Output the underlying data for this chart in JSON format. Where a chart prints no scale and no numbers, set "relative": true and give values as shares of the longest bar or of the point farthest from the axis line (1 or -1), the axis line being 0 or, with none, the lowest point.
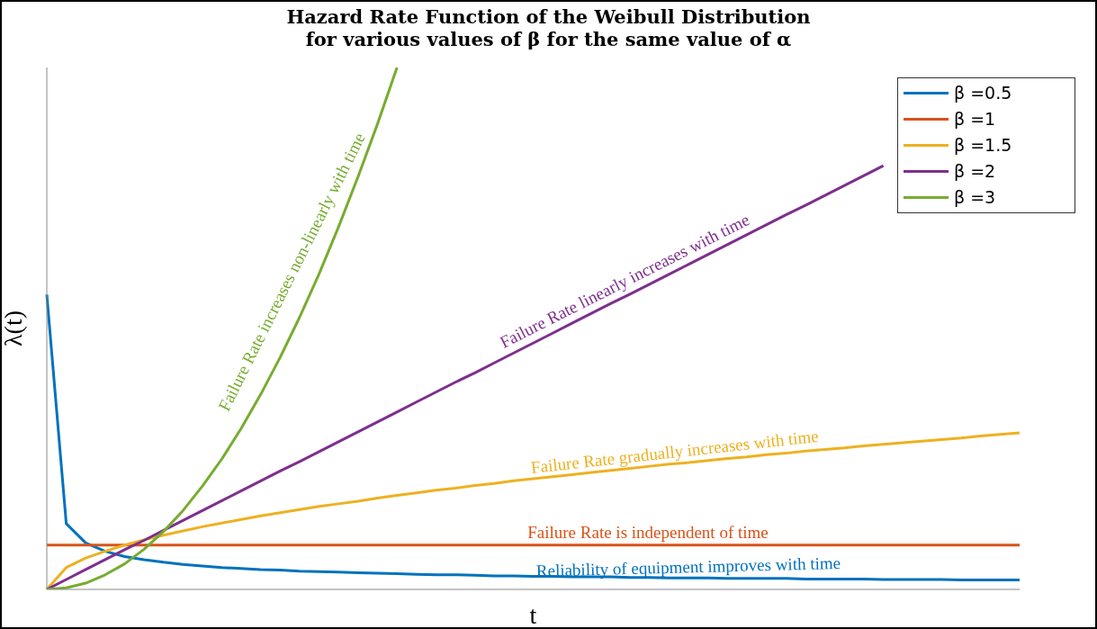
{
  "chart_data": {
    "type": "line",
    "title": "Hazard Rate Function of the Weibull Distribution",
    "subtitle": "for various values of β for the same value of α",
    "xlabel": "t",
    "ylabel": "λ(t)",
    "relative": true,
    "legend": "top right",
    "categories": [
      null,
      null,
      null,
      null,
      null,
      null,
      null,
      null,
      null,
      null,
      null,
      null,
      null,
      null,
      null,
      null,
      null,
      null,
      null,
      null,
      null,
      null,
      null,
      null,
      null,
      null,
      null,
      null,
      null,
      null,
      null,
      null,
      null,
      null,
      null,
      null,
      null,
      null,
      null,
      null,
      null,
      null,
      null,
      null,
      null,
      null,
      null,
      null,
      null,
      null,
      null
    ],
    "series": [
      {
        "name": "β =0.5",
        "color": "#0072bd",
        "values": [
          0.565,
          0.126,
          0.089,
          0.073,
          0.063,
          0.057,
          0.052,
          0.048,
          0.045,
          0.042,
          0.04,
          0.038,
          0.037,
          0.035,
          0.034,
          0.033,
          0.032,
          0.031,
          0.03,
          0.029,
          0.028,
          0.028,
          0.027,
          0.026,
          0.026,
          0.025,
          0.025,
          0.024,
          0.024,
          0.024,
          0.023,
          0.023,
          0.022,
          0.022,
          0.022,
          0.021,
          0.021,
          0.021,
          0.021,
          0.02,
          0.02,
          0.02,
          0.02,
          0.019,
          0.019,
          0.019,
          0.019,
          0.018,
          0.018,
          0.018,
          0.018
        ]
      },
      {
        "name": "β =1",
        "color": "#d95319",
        "values": [
          0.085,
          0.085,
          0.085,
          0.085,
          0.085,
          0.085,
          0.085,
          0.085,
          0.085,
          0.085,
          0.085,
          0.085,
          0.085,
          0.085,
          0.085,
          0.085,
          0.085,
          0.085,
          0.085,
          0.085,
          0.085,
          0.085,
          0.085,
          0.085,
          0.085,
          0.085,
          0.085,
          0.085,
          0.085,
          0.085,
          0.085,
          0.085,
          0.085,
          0.085,
          0.085,
          0.085,
          0.085,
          0.085,
          0.085,
          0.085,
          0.085,
          0.085,
          0.085,
          0.085,
          0.085,
          0.085,
          0.085,
          0.085,
          0.085,
          0.085,
          0.085
        ]
      },
      {
        "name": "β =1.5",
        "color": "#edb120",
        "values": [
          0,
          0.042,
          0.06,
          0.073,
          0.085,
          0.095,
          0.104,
          0.112,
          0.12,
          0.127,
          0.134,
          0.141,
          0.147,
          0.153,
          0.159,
          0.164,
          0.169,
          0.175,
          0.18,
          0.185,
          0.19,
          0.194,
          0.199,
          0.203,
          0.208,
          0.212,
          0.216,
          0.22,
          0.224,
          0.228,
          0.232,
          0.236,
          0.24,
          0.243,
          0.247,
          0.251,
          0.254,
          0.258,
          0.261,
          0.265,
          0.268,
          0.271,
          0.275,
          0.278,
          0.281,
          0.284,
          0.287,
          0.29,
          0.294,
          0.297,
          0.3
        ]
      },
      {
        "name": "β =2",
        "color": "#7e2f8e",
        "values": [
          0,
          0.019,
          0.038,
          0.057,
          0.076,
          0.094,
          0.113,
          0.132,
          0.151,
          0.17,
          0.189,
          0.208,
          0.227,
          0.245,
          0.264,
          0.283,
          0.302,
          0.321,
          0.34,
          0.359,
          0.378,
          0.397,
          0.415,
          0.434,
          0.453,
          0.472,
          0.491,
          0.51,
          0.529,
          0.548,
          0.566,
          0.585,
          0.604,
          0.623,
          0.642,
          0.661,
          0.68,
          0.699,
          0.718,
          0.736,
          0.755,
          0.774,
          0.793,
          0.812,
          null,
          null,
          null,
          null,
          null,
          null,
          null
        ]
      },
      {
        "name": "β =3",
        "color": "#77ac30",
        "values": [
          0,
          0.003,
          0.012,
          0.028,
          0.049,
          0.077,
          0.111,
          0.151,
          0.198,
          0.25,
          0.309,
          0.374,
          0.445,
          0.522,
          0.605,
          0.695,
          0.791,
          0.892,
          1.0,
          null,
          null,
          null,
          null,
          null,
          null,
          null,
          null,
          null,
          null,
          null,
          null,
          null,
          null,
          null,
          null,
          null,
          null,
          null,
          null,
          null,
          null,
          null,
          null,
          null,
          null,
          null,
          null,
          null,
          null,
          null,
          null
        ]
      }
    ],
    "annotations": [
      "Reliability of equipment improves with time",
      "Failure Rate is independent of time",
      "Failure Rate gradually increases with time",
      "Failure Rate linearly increases with time",
      "Failure Rate increases non-linearly with time"
    ]
  }
}
